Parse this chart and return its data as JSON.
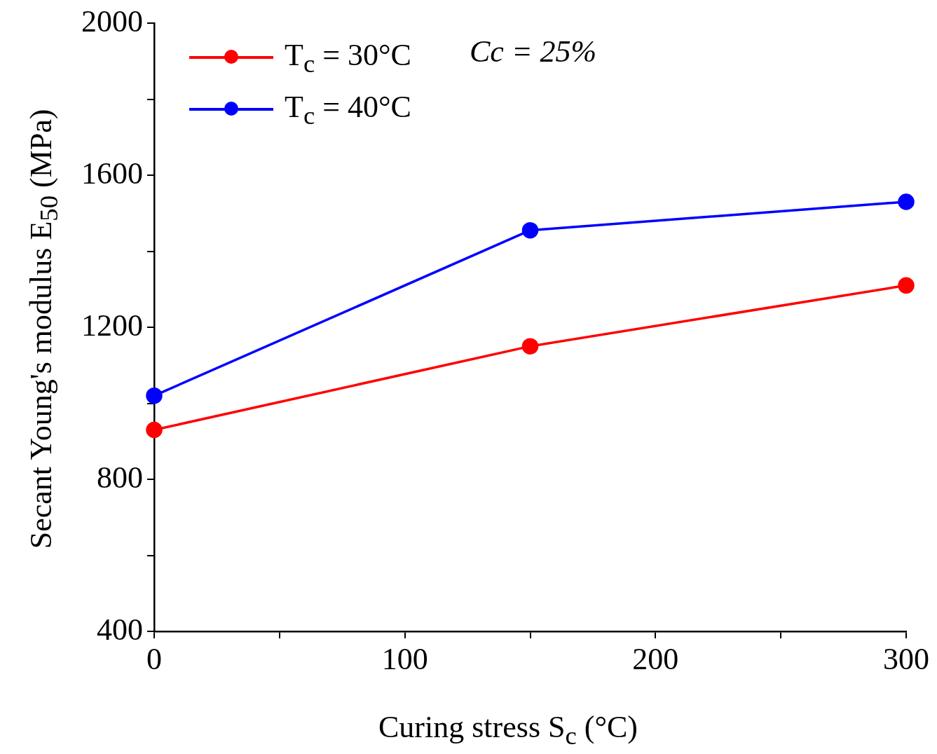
{
  "chart_data": {
    "type": "line",
    "xlabel": "Curing stress S$_{c}$ (°C)",
    "ylabel": "Secant Young's modulus E$_{50}$ (MPa)",
    "x": [
      0,
      150,
      300
    ],
    "series": [
      {
        "name": "T$_{c}$ = 30°C",
        "color": "#ff0000",
        "values": [
          930,
          1150,
          1310
        ]
      },
      {
        "name": "T$_{c}$ = 40°C",
        "color": "#0000ff",
        "values": [
          1020,
          1455,
          1530
        ]
      }
    ],
    "xlim": [
      0,
      300
    ],
    "ylim": [
      400,
      2000
    ],
    "xticks": [
      0,
      {
        "value": 50,
        "label": null
      },
      100,
      {
        "value": 150,
        "label": null
      },
      200,
      {
        "value": 250,
        "label": null
      },
      300
    ],
    "yticks": [
      400,
      {
        "value": 600,
        "label": null
      },
      800,
      {
        "value": 1000,
        "label": null
      },
      1200,
      {
        "value": 1400,
        "label": null
      },
      1600,
      {
        "value": 1800,
        "label": null
      },
      2000
    ],
    "grid": false,
    "legend": "top left",
    "marker": "circle",
    "line_style": "solid",
    "annotations": [
      "Cc = 25%"
    ]
  }
}
